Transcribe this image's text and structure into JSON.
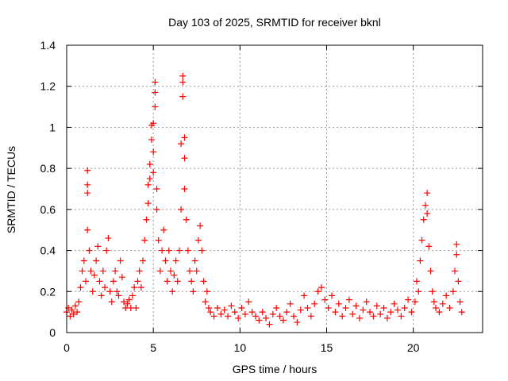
{
  "chart_data": {
    "type": "scatter",
    "title": "Day 103 of 2025, SRMTID for receiver bknl",
    "xlabel": "GPS time / hours",
    "ylabel": "SRMTID / TECUs",
    "xlim": [
      0,
      24
    ],
    "ylim": [
      0,
      1.4
    ],
    "x_ticks": [
      0,
      5,
      10,
      15,
      20
    ],
    "x_tick_labels": [
      "0",
      "5",
      "10",
      "15",
      "20"
    ],
    "y_ticks": [
      0,
      0.2,
      0.4,
      0.6,
      0.8,
      1.0,
      1.2,
      1.4
    ],
    "y_tick_labels": [
      "0",
      "0.2",
      "0.4",
      "0.6",
      "0.8",
      "1",
      "1.2",
      "1.4"
    ],
    "grid": true,
    "marker": "plus",
    "color": "#ff0000",
    "series": [
      {
        "name": "SRMTID",
        "points": [
          [
            0.0,
            0.1
          ],
          [
            0.1,
            0.12
          ],
          [
            0.2,
            0.08
          ],
          [
            0.3,
            0.11
          ],
          [
            0.4,
            0.09
          ],
          [
            0.5,
            0.13
          ],
          [
            0.6,
            0.1
          ],
          [
            0.7,
            0.15
          ],
          [
            0.8,
            0.22
          ],
          [
            0.9,
            0.3
          ],
          [
            1.0,
            0.35
          ],
          [
            1.1,
            0.25
          ],
          [
            1.2,
            0.5
          ],
          [
            1.2,
            0.79
          ],
          [
            1.2,
            0.72
          ],
          [
            1.2,
            0.68
          ],
          [
            1.3,
            0.4
          ],
          [
            1.4,
            0.3
          ],
          [
            1.5,
            0.2
          ],
          [
            1.6,
            0.28
          ],
          [
            1.7,
            0.35
          ],
          [
            1.8,
            0.42
          ],
          [
            1.9,
            0.25
          ],
          [
            2.0,
            0.18
          ],
          [
            2.1,
            0.3
          ],
          [
            2.2,
            0.22
          ],
          [
            2.3,
            0.4
          ],
          [
            2.4,
            0.46
          ],
          [
            2.5,
            0.2
          ],
          [
            2.6,
            0.15
          ],
          [
            2.7,
            0.25
          ],
          [
            2.8,
            0.3
          ],
          [
            2.9,
            0.2
          ],
          [
            3.0,
            0.18
          ],
          [
            3.1,
            0.35
          ],
          [
            3.2,
            0.27
          ],
          [
            3.3,
            0.15
          ],
          [
            3.4,
            0.12
          ],
          [
            3.5,
            0.14
          ],
          [
            3.6,
            0.16
          ],
          [
            3.7,
            0.12
          ],
          [
            3.8,
            0.18
          ],
          [
            3.9,
            0.22
          ],
          [
            4.0,
            0.12
          ],
          [
            4.1,
            0.25
          ],
          [
            4.2,
            0.3
          ],
          [
            4.3,
            0.22
          ],
          [
            4.4,
            0.35
          ],
          [
            4.5,
            0.45
          ],
          [
            4.6,
            0.55
          ],
          [
            4.7,
            0.63
          ],
          [
            4.7,
            0.72
          ],
          [
            4.8,
            0.75
          ],
          [
            4.8,
            0.82
          ],
          [
            4.9,
            1.01
          ],
          [
            4.9,
            0.94
          ],
          [
            5.0,
            1.02
          ],
          [
            5.0,
            0.88
          ],
          [
            5.0,
            0.78
          ],
          [
            5.1,
            1.17
          ],
          [
            5.1,
            1.22
          ],
          [
            5.1,
            1.1
          ],
          [
            5.2,
            0.7
          ],
          [
            5.2,
            0.6
          ],
          [
            5.3,
            0.45
          ],
          [
            5.4,
            0.3
          ],
          [
            5.5,
            0.4
          ],
          [
            5.6,
            0.5
          ],
          [
            5.7,
            0.35
          ],
          [
            5.8,
            0.25
          ],
          [
            5.9,
            0.4
          ],
          [
            6.0,
            0.3
          ],
          [
            6.1,
            0.2
          ],
          [
            6.2,
            0.28
          ],
          [
            6.3,
            0.35
          ],
          [
            6.4,
            0.25
          ],
          [
            6.5,
            0.4
          ],
          [
            6.6,
            0.6
          ],
          [
            6.6,
            0.92
          ],
          [
            6.7,
            1.25
          ],
          [
            6.7,
            1.22
          ],
          [
            6.7,
            1.15
          ],
          [
            6.8,
            0.95
          ],
          [
            6.8,
            0.85
          ],
          [
            6.8,
            0.7
          ],
          [
            6.9,
            0.55
          ],
          [
            7.0,
            0.4
          ],
          [
            7.1,
            0.3
          ],
          [
            7.2,
            0.25
          ],
          [
            7.3,
            0.2
          ],
          [
            7.4,
            0.35
          ],
          [
            7.5,
            0.3
          ],
          [
            7.6,
            0.45
          ],
          [
            7.7,
            0.52
          ],
          [
            7.8,
            0.4
          ],
          [
            7.9,
            0.25
          ],
          [
            8.0,
            0.15
          ],
          [
            8.1,
            0.2
          ],
          [
            8.2,
            0.12
          ],
          [
            8.3,
            0.1
          ],
          [
            8.5,
            0.08
          ],
          [
            8.7,
            0.12
          ],
          [
            8.9,
            0.09
          ],
          [
            9.1,
            0.11
          ],
          [
            9.3,
            0.08
          ],
          [
            9.5,
            0.13
          ],
          [
            9.7,
            0.1
          ],
          [
            9.9,
            0.07
          ],
          [
            10.1,
            0.12
          ],
          [
            10.3,
            0.09
          ],
          [
            10.5,
            0.15
          ],
          [
            10.7,
            0.1
          ],
          [
            10.9,
            0.08
          ],
          [
            11.1,
            0.06
          ],
          [
            11.3,
            0.1
          ],
          [
            11.5,
            0.07
          ],
          [
            11.7,
            0.04
          ],
          [
            11.9,
            0.09
          ],
          [
            12.1,
            0.12
          ],
          [
            12.3,
            0.08
          ],
          [
            12.5,
            0.06
          ],
          [
            12.7,
            0.1
          ],
          [
            12.9,
            0.14
          ],
          [
            13.1,
            0.08
          ],
          [
            13.3,
            0.05
          ],
          [
            13.5,
            0.11
          ],
          [
            13.7,
            0.18
          ],
          [
            13.9,
            0.12
          ],
          [
            14.1,
            0.08
          ],
          [
            14.3,
            0.14
          ],
          [
            14.5,
            0.2
          ],
          [
            14.7,
            0.22
          ],
          [
            14.9,
            0.16
          ],
          [
            15.1,
            0.12
          ],
          [
            15.3,
            0.18
          ],
          [
            15.5,
            0.1
          ],
          [
            15.7,
            0.14
          ],
          [
            15.9,
            0.08
          ],
          [
            16.1,
            0.12
          ],
          [
            16.3,
            0.16
          ],
          [
            16.5,
            0.09
          ],
          [
            16.7,
            0.13
          ],
          [
            16.9,
            0.07
          ],
          [
            17.1,
            0.11
          ],
          [
            17.3,
            0.15
          ],
          [
            17.5,
            0.1
          ],
          [
            17.7,
            0.08
          ],
          [
            17.9,
            0.13
          ],
          [
            18.1,
            0.09
          ],
          [
            18.3,
            0.12
          ],
          [
            18.5,
            0.07
          ],
          [
            18.7,
            0.1
          ],
          [
            18.9,
            0.14
          ],
          [
            19.1,
            0.11
          ],
          [
            19.3,
            0.08
          ],
          [
            19.5,
            0.12
          ],
          [
            19.7,
            0.16
          ],
          [
            19.9,
            0.1
          ],
          [
            20.1,
            0.15
          ],
          [
            20.2,
            0.25
          ],
          [
            20.3,
            0.2
          ],
          [
            20.4,
            0.35
          ],
          [
            20.5,
            0.45
          ],
          [
            20.6,
            0.55
          ],
          [
            20.7,
            0.62
          ],
          [
            20.8,
            0.68
          ],
          [
            20.8,
            0.58
          ],
          [
            20.9,
            0.42
          ],
          [
            21.0,
            0.3
          ],
          [
            21.1,
            0.2
          ],
          [
            21.2,
            0.15
          ],
          [
            21.3,
            0.12
          ],
          [
            21.5,
            0.1
          ],
          [
            21.7,
            0.14
          ],
          [
            21.9,
            0.18
          ],
          [
            22.1,
            0.12
          ],
          [
            22.3,
            0.2
          ],
          [
            22.4,
            0.3
          ],
          [
            22.5,
            0.43
          ],
          [
            22.5,
            0.38
          ],
          [
            22.6,
            0.25
          ],
          [
            22.7,
            0.15
          ],
          [
            22.8,
            0.1
          ]
        ]
      }
    ]
  }
}
